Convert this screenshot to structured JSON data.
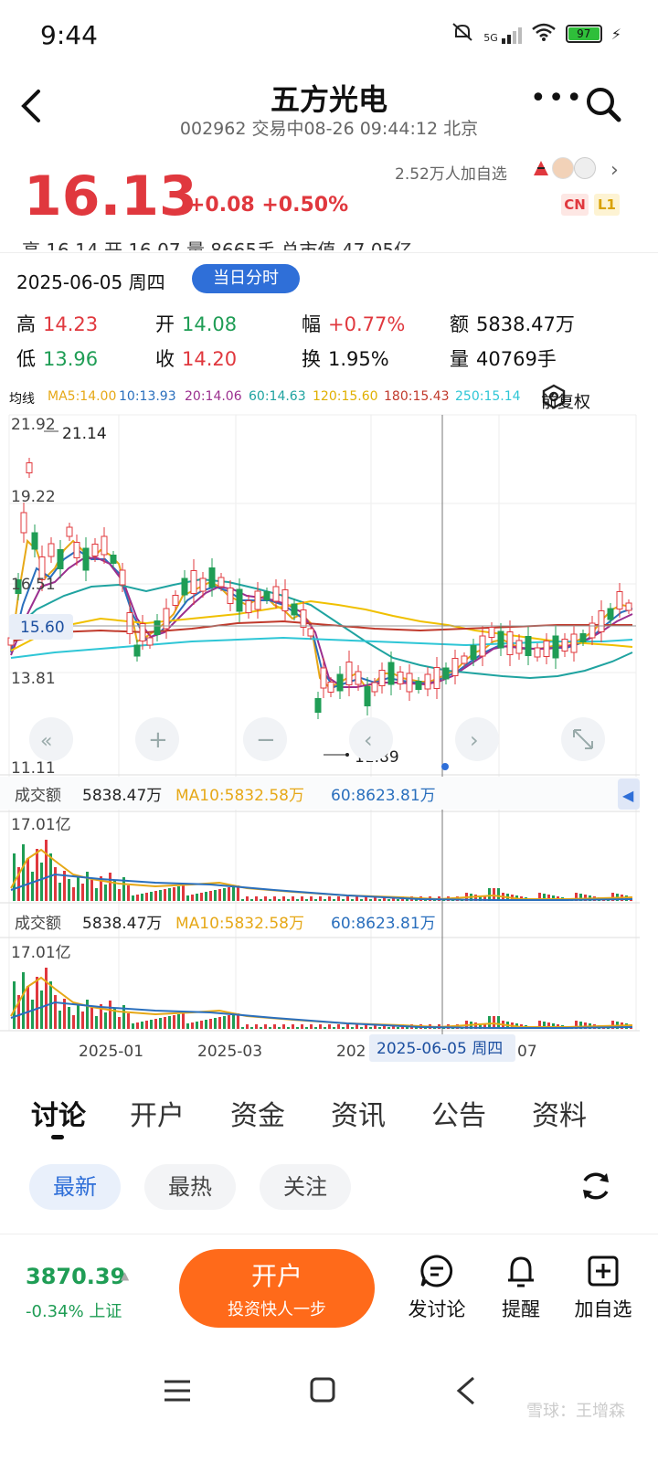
{
  "status": {
    "time": "9:44",
    "network": "5G",
    "battery": "97"
  },
  "header": {
    "title": "五方光电",
    "subtitle": "002962 交易中08-26 09:44:12 北京"
  },
  "quote": {
    "price": "16.13",
    "change": "+0.08 +0.50%",
    "followers": "2.52万人加自选",
    "badge_cn": "CN",
    "badge_l1": "L1",
    "cut_row": "高 16.14     开 16.07     量 8665手      总市值 47.05亿"
  },
  "day": {
    "date": "2025-06-05 周四",
    "mode_button": "当日分时",
    "high_label": "高",
    "high": "14.23",
    "low_label": "低",
    "low": "13.96",
    "open_label": "开",
    "open": "14.08",
    "close_label": "收",
    "close": "14.20",
    "amp_label": "幅",
    "amp": "+0.77%",
    "turn_label": "换",
    "turn": "1.95%",
    "amount_label": "额",
    "amount": "5838.47万",
    "volume_label": "量",
    "volume": "40769手"
  },
  "ma": {
    "label": "均线",
    "ma5": "MA5:14.00",
    "ma10": "10:13.93",
    "ma20": "20:14.06",
    "ma60": "60:14.63",
    "ma120": "120:15.60",
    "ma180": "180:15.43",
    "ma250": "250:15.14",
    "adjust": "前复权",
    "colors": {
      "ma5": "#e6a817",
      "ma10": "#2a6fbd",
      "ma20": "#9b2f8f",
      "ma60": "#1fa3a0",
      "ma120": "#f0c000",
      "ma180": "#c0392b",
      "ma250": "#2ec6d6"
    }
  },
  "kline": {
    "y_labels": [
      "21.92",
      "19.22",
      "16.51",
      "13.81",
      "11.11"
    ],
    "max_marker": "21.14",
    "min_marker": "11.89",
    "crosshair_price": "15.60",
    "x_labels": [
      "2025-01",
      "2025-03",
      "202",
      "07"
    ],
    "crosshair_date": "2025-06-05 周四",
    "up_color": "#e0383e",
    "down_color": "#1f9d55"
  },
  "volume1": {
    "label": "成交额",
    "value": "5838.47万",
    "ma10": "MA10:5832.58万",
    "ma60": "60:8623.81万",
    "top": "17.01亿"
  },
  "volume2": {
    "label": "成交额",
    "value": "5838.47万",
    "ma10": "MA10:5832.58万",
    "ma60": "60:8623.81万",
    "top": "17.01亿"
  },
  "tabs": [
    "讨论",
    "开户",
    "资金",
    "资讯",
    "公告",
    "资料"
  ],
  "filters": [
    "最新",
    "最热",
    "关注"
  ],
  "bottom": {
    "index_value": "3870.39",
    "index_change": "-0.34% 上证",
    "open_title": "开户",
    "open_sub": "投资快人一步",
    "actions": [
      "发讨论",
      "提醒",
      "加自选"
    ]
  },
  "watermark": "雪球：王增森"
}
